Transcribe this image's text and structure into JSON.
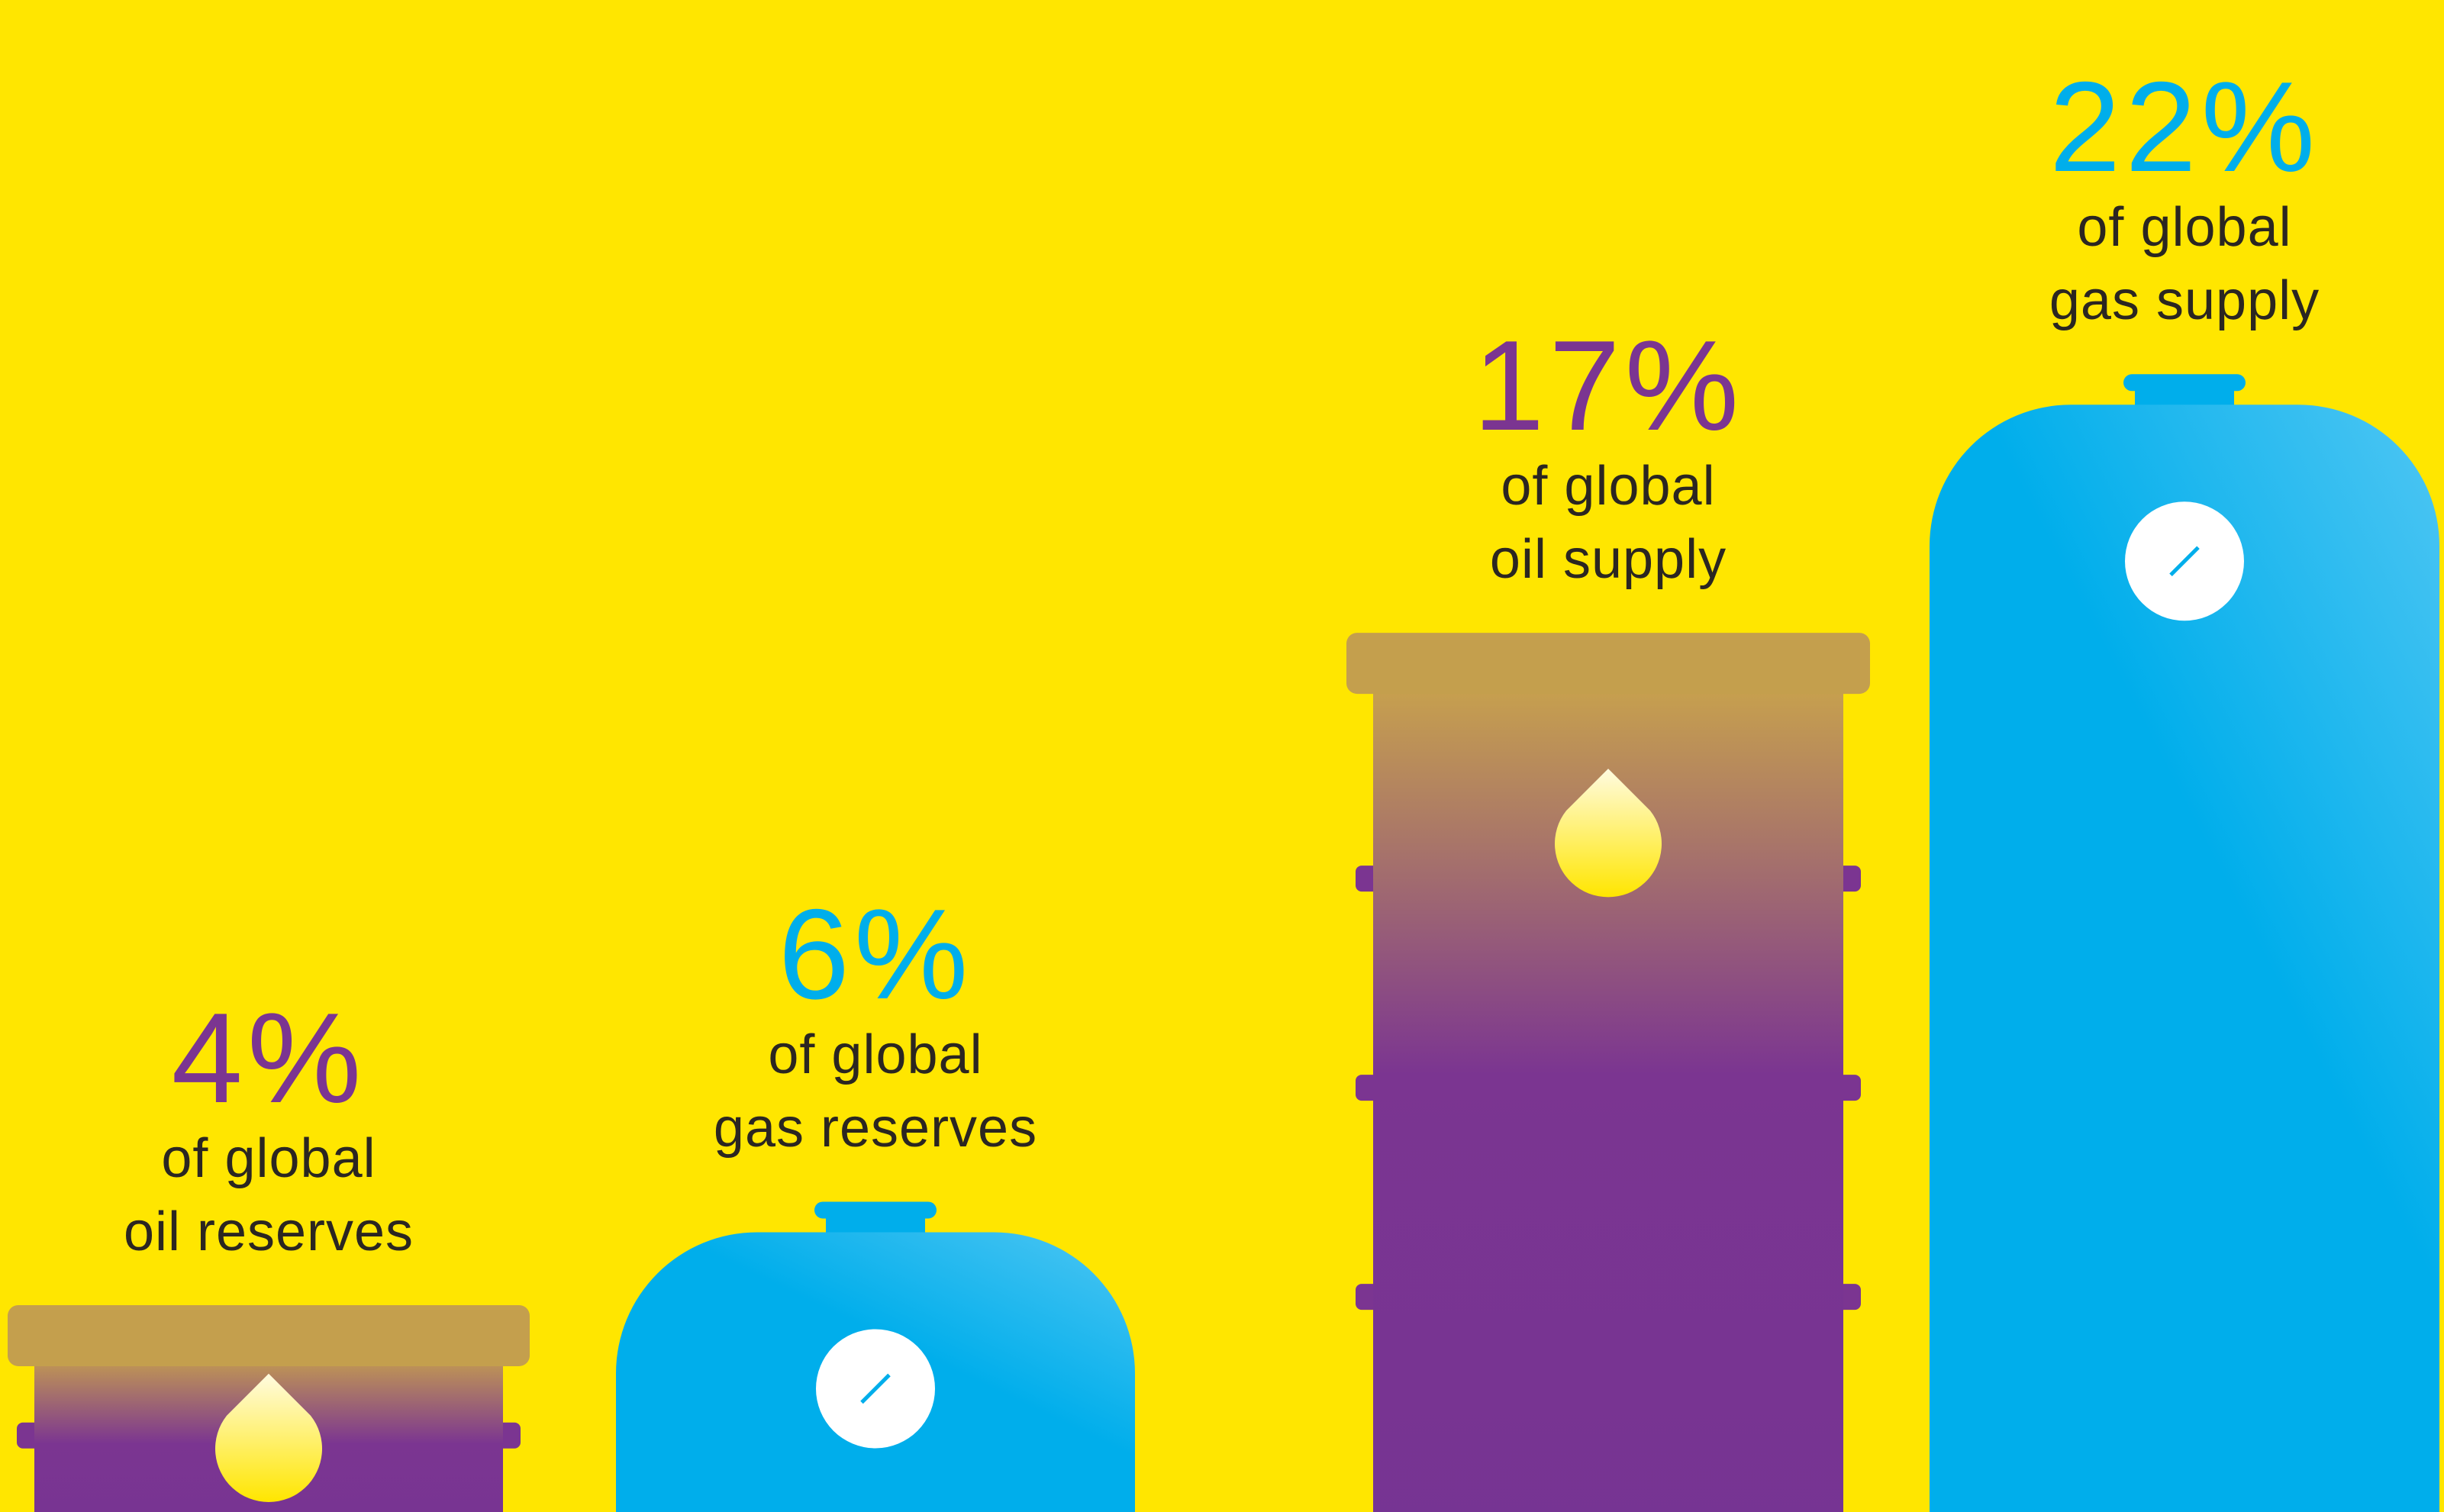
{
  "chart_data": {
    "type": "pictogram-bar",
    "categories": [
      "of global\noil reserves",
      "of global\ngas reserves",
      "of global\noil supply",
      "of global\ngas supply"
    ],
    "values": [
      4,
      6,
      17,
      22
    ],
    "value_labels": [
      "4%",
      "6%",
      "17%",
      "22%"
    ],
    "colors": [
      "#7b3591",
      "#00aeeb",
      "#7b3591",
      "#00aeeb"
    ],
    "shapes": [
      "barrel",
      "tank",
      "barrel",
      "tank"
    ]
  }
}
